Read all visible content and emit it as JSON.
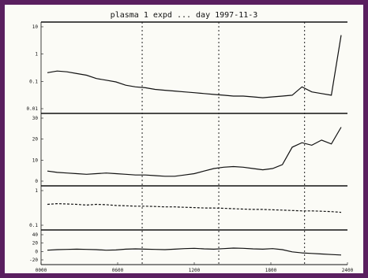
{
  "chart_data": {
    "type": "line",
    "title": "plasma 1 expd ... day 1997-11-3",
    "panel_tick_labels": [
      [
        "10",
        "1",
        "0.1",
        "0.01"
      ],
      [
        "30",
        "20",
        "10",
        "0"
      ],
      [
        "1",
        "0.1"
      ],
      [
        "40",
        "20",
        "0",
        "-20"
      ]
    ],
    "x_tick_labels": [
      "0000",
      "0600",
      "1200",
      "1800",
      "2400"
    ],
    "series": [
      {
        "values": [
          0.45,
          0.47,
          0.46,
          0.44,
          0.42,
          0.38,
          0.36,
          0.34,
          0.3,
          0.28,
          0.27,
          0.25,
          0.24,
          0.23,
          0.22,
          0.21,
          0.2,
          0.19,
          0.18,
          0.17,
          0.17,
          0.16,
          0.15,
          0.16,
          0.17,
          0.18,
          0.28,
          0.22,
          0.2,
          0.18,
          0.9
        ]
      },
      {
        "values": [
          0.18,
          0.16,
          0.15,
          0.14,
          0.13,
          0.14,
          0.15,
          0.14,
          0.13,
          0.12,
          0.12,
          0.11,
          0.1,
          0.1,
          0.12,
          0.14,
          0.18,
          0.22,
          0.24,
          0.25,
          0.24,
          0.22,
          0.2,
          0.22,
          0.28,
          0.55,
          0.62,
          0.58,
          0.66,
          0.6,
          0.86
        ]
      },
      {
        "values": [
          0.62,
          0.64,
          0.63,
          0.62,
          0.6,
          0.62,
          0.61,
          0.59,
          0.58,
          0.57,
          0.57,
          0.56,
          0.55,
          0.55,
          0.54,
          0.53,
          0.52,
          0.52,
          0.51,
          0.5,
          0.49,
          0.48,
          0.48,
          0.47,
          0.46,
          0.45,
          0.44,
          0.44,
          0.43,
          0.42,
          0.4
        ]
      },
      {
        "values": [
          0.42,
          0.44,
          0.45,
          0.46,
          0.45,
          0.44,
          0.42,
          0.43,
          0.46,
          0.47,
          0.46,
          0.45,
          0.44,
          0.46,
          0.48,
          0.49,
          0.47,
          0.46,
          0.48,
          0.5,
          0.49,
          0.47,
          0.46,
          0.48,
          0.44,
          0.36,
          0.32,
          0.3,
          0.28,
          0.26,
          0.24
        ]
      }
    ],
    "vlines_x": [
      0.33,
      0.58,
      0.86
    ],
    "panels": 4
  }
}
